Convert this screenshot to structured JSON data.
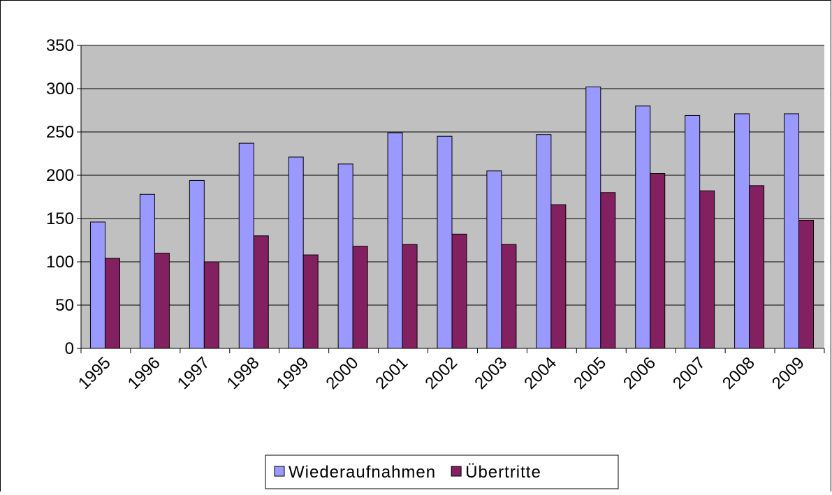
{
  "chart_data": {
    "type": "bar",
    "categories": [
      "1995",
      "1996",
      "1997",
      "1998",
      "1999",
      "2000",
      "2001",
      "2002",
      "2003",
      "2004",
      "2005",
      "2006",
      "2007",
      "2008",
      "2009"
    ],
    "series": [
      {
        "name": "Wiederaufnahmen",
        "color": "#9999ff",
        "values": [
          146,
          178,
          194,
          237,
          221,
          213,
          249,
          245,
          205,
          247,
          302,
          280,
          269,
          271,
          271
        ]
      },
      {
        "name": "Übertritte",
        "color": "#832160",
        "values": [
          104,
          110,
          100,
          130,
          108,
          118,
          120,
          132,
          120,
          166,
          180,
          202,
          182,
          188,
          148
        ]
      }
    ],
    "ylim": [
      0,
      350
    ],
    "yticks": [
      0,
      50,
      100,
      150,
      200,
      250,
      300,
      350
    ],
    "grid": true,
    "legend": "bottom"
  }
}
